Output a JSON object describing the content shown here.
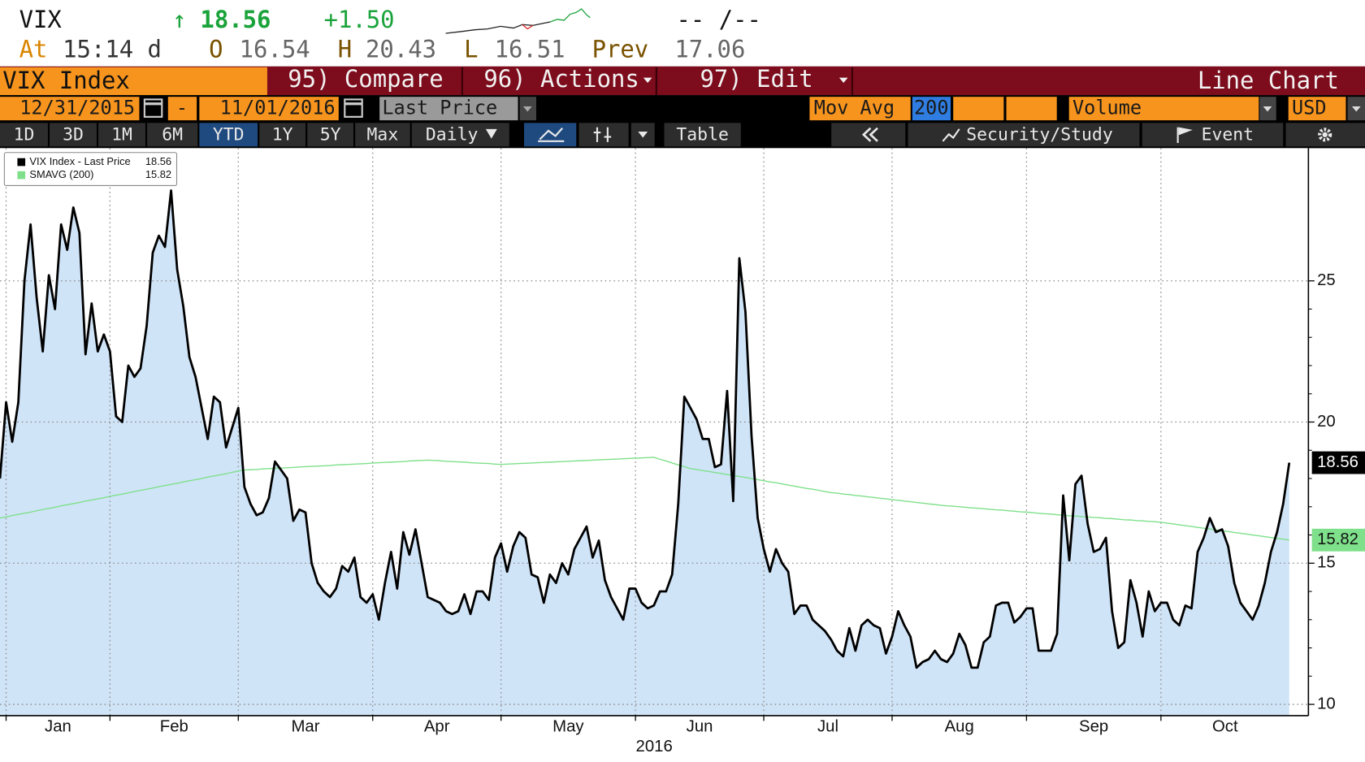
{
  "quote": {
    "ticker": "VIX",
    "arrow": "↑",
    "last": 18.56,
    "change": "+1.50",
    "bid_ask": "-- /--",
    "time_label": "At",
    "time": "15:14 d",
    "open_label": "O",
    "open": 16.54,
    "high_label": "H",
    "high": 20.43,
    "low_label": "L",
    "low": 16.51,
    "prev_label": "Prev",
    "prev": 17.06
  },
  "menu": {
    "security": "VIX Index",
    "items": [
      "95) Compare",
      "96) Actions",
      "97) Edit"
    ],
    "view": "Line Chart"
  },
  "controls": {
    "start_date": "12/31/2015",
    "dash": "-",
    "end_date": "11/01/2016",
    "field": "Last Price",
    "mov_avg_label": "Mov Avg",
    "mov_avg_period": 200,
    "volume": "Volume",
    "currency": "USD"
  },
  "toolbar": {
    "periods": [
      "1D",
      "3D",
      "1M",
      "6M",
      "YTD",
      "1Y",
      "5Y",
      "Max"
    ],
    "selected_period": "YTD",
    "frequency": "Daily",
    "table": "Table",
    "security_study": "Security/Study",
    "event": "Event"
  },
  "chart_data": {
    "type": "line",
    "x_axis_label": "2016",
    "ylim": [
      9.6,
      29.7
    ],
    "yticks": [
      10,
      15,
      20,
      25
    ],
    "grid": true,
    "y_axis_side": "right",
    "legend": "upper left",
    "categories": [
      null,
      "Jan",
      null,
      null,
      null,
      null,
      null,
      null,
      null,
      null,
      null,
      null,
      null,
      null,
      null,
      null,
      null,
      null,
      "Feb",
      null,
      null,
      null,
      null,
      null,
      null,
      null,
      null,
      null,
      null,
      null,
      null,
      null,
      null,
      null,
      null,
      null,
      null,
      null,
      null,
      "Mar",
      null,
      null,
      null,
      null,
      null,
      null,
      null,
      null,
      null,
      null,
      null,
      null,
      null,
      null,
      null,
      null,
      null,
      null,
      null,
      null,
      null,
      "Apr",
      null,
      null,
      null,
      null,
      null,
      null,
      null,
      null,
      null,
      null,
      null,
      null,
      null,
      null,
      null,
      null,
      null,
      null,
      null,
      null,
      "May",
      null,
      null,
      null,
      null,
      null,
      null,
      null,
      null,
      null,
      null,
      null,
      null,
      null,
      null,
      null,
      null,
      null,
      null,
      null,
      null,
      null,
      "Jun",
      null,
      null,
      null,
      null,
      null,
      null,
      null,
      null,
      null,
      null,
      null,
      null,
      null,
      null,
      null,
      null,
      null,
      null,
      null,
      null,
      "Jul",
      null,
      null,
      null,
      null,
      null,
      null,
      null,
      null,
      null,
      null,
      null,
      null,
      null,
      null,
      null,
      null,
      null,
      null,
      null,
      null,
      "Aug",
      null,
      null,
      null,
      null,
      null,
      null,
      null,
      null,
      null,
      null,
      null,
      null,
      null,
      null,
      null,
      null,
      null,
      null,
      null,
      null,
      null,
      "Sep",
      null,
      null,
      null,
      null,
      null,
      null,
      null,
      null,
      null,
      null,
      null,
      null,
      null,
      null,
      null,
      null,
      null,
      null,
      null,
      null,
      null,
      "Oct",
      null,
      null,
      null,
      null,
      null,
      null,
      null,
      null,
      null,
      null,
      null,
      null,
      null,
      null,
      null,
      null,
      null,
      null,
      null,
      null,
      null
    ],
    "series": [
      {
        "name": "VIX Index - Last Price",
        "color": "#000000",
        "fill": "#d0e4f8",
        "values": [
          18.0,
          20.7,
          19.3,
          20.7,
          25.0,
          27.0,
          24.4,
          22.5,
          25.2,
          24.0,
          27.0,
          26.1,
          27.6,
          26.7,
          22.4,
          24.2,
          22.5,
          23.1,
          22.5,
          20.2,
          20.0,
          22.0,
          21.6,
          21.9,
          23.4,
          26.0,
          26.6,
          26.2,
          28.2,
          25.4,
          24.1,
          22.3,
          21.6,
          20.5,
          19.4,
          20.9,
          20.7,
          19.1,
          19.8,
          20.5,
          17.7,
          17.1,
          16.7,
          16.8,
          17.3,
          18.6,
          18.3,
          18.0,
          16.5,
          16.9,
          16.8,
          15.0,
          14.3,
          14.0,
          13.8,
          14.1,
          14.9,
          14.7,
          15.2,
          13.8,
          13.6,
          13.9,
          13.0,
          14.3,
          15.4,
          14.1,
          16.1,
          15.3,
          16.2,
          15.0,
          13.8,
          13.7,
          13.6,
          13.3,
          13.2,
          13.3,
          13.9,
          13.2,
          14.0,
          14.0,
          13.7,
          15.2,
          15.7,
          14.7,
          15.6,
          16.1,
          15.9,
          14.6,
          14.5,
          13.6,
          14.6,
          14.3,
          15.0,
          14.6,
          15.5,
          15.9,
          16.3,
          15.2,
          15.8,
          14.4,
          13.8,
          13.4,
          13.0,
          14.1,
          14.1,
          13.6,
          13.4,
          13.5,
          14.0,
          14.0,
          14.6,
          17.1,
          20.9,
          20.5,
          20.1,
          19.4,
          19.4,
          18.4,
          18.5,
          21.1,
          17.2,
          25.8,
          23.9,
          19.5,
          16.6,
          15.5,
          14.7,
          15.5,
          15.0,
          14.7,
          13.2,
          13.5,
          13.5,
          13.0,
          12.8,
          12.6,
          12.3,
          11.9,
          11.7,
          12.7,
          11.9,
          12.8,
          13.0,
          12.8,
          12.7,
          11.8,
          12.4,
          13.3,
          12.8,
          12.4,
          11.3,
          11.5,
          11.6,
          11.9,
          11.6,
          11.5,
          11.8,
          12.5,
          12.1,
          11.3,
          11.3,
          12.2,
          12.4,
          13.5,
          13.6,
          13.6,
          12.9,
          13.1,
          13.4,
          13.4,
          11.9,
          11.9,
          11.9,
          12.5,
          17.4,
          15.1,
          17.8,
          18.1,
          16.4,
          15.4,
          15.5,
          15.9,
          13.3,
          12.0,
          12.2,
          14.4,
          13.6,
          12.4,
          14.0,
          13.3,
          13.6,
          13.6,
          13.0,
          12.8,
          13.5,
          13.4,
          15.4,
          15.9,
          16.6,
          16.1,
          16.2,
          15.6,
          14.3,
          13.6,
          13.3,
          13.0,
          13.5,
          14.3,
          15.4,
          16.1,
          17.1,
          18.56
        ]
      },
      {
        "name": "SMAVG (200)",
        "color": "#7ee08a",
        "values": [
          16.6,
          16.64,
          16.69,
          16.73,
          16.77,
          16.81,
          16.86,
          16.9,
          16.94,
          16.98,
          17.03,
          17.07,
          17.11,
          17.15,
          17.2,
          17.24,
          17.28,
          17.32,
          17.37,
          17.41,
          17.45,
          17.49,
          17.54,
          17.58,
          17.62,
          17.66,
          17.71,
          17.75,
          17.79,
          17.83,
          17.88,
          17.92,
          17.96,
          18.0,
          18.05,
          18.09,
          18.13,
          18.17,
          18.22,
          18.26,
          18.3,
          18.31,
          18.32,
          18.34,
          18.35,
          18.36,
          18.37,
          18.38,
          18.39,
          18.41,
          18.42,
          18.43,
          18.44,
          18.45,
          18.46,
          18.48,
          18.49,
          18.5,
          18.51,
          18.52,
          18.53,
          18.55,
          18.56,
          18.57,
          18.58,
          18.59,
          18.6,
          18.62,
          18.63,
          18.64,
          18.65,
          18.64,
          18.63,
          18.61,
          18.6,
          18.59,
          18.58,
          18.56,
          18.55,
          18.54,
          18.53,
          18.51,
          18.5,
          18.51,
          18.52,
          18.53,
          18.54,
          18.55,
          18.56,
          18.57,
          18.58,
          18.59,
          18.6,
          18.61,
          18.62,
          18.63,
          18.64,
          18.65,
          18.66,
          18.67,
          18.68,
          18.69,
          18.7,
          18.71,
          18.72,
          18.73,
          18.74,
          18.75,
          18.68,
          18.62,
          18.55,
          18.48,
          18.42,
          18.35,
          18.32,
          18.28,
          18.25,
          18.21,
          18.18,
          18.14,
          18.11,
          18.07,
          18.04,
          18.0,
          17.96,
          17.92,
          17.88,
          17.85,
          17.81,
          17.77,
          17.73,
          17.69,
          17.65,
          17.62,
          17.58,
          17.54,
          17.5,
          17.48,
          17.45,
          17.43,
          17.4,
          17.38,
          17.35,
          17.33,
          17.3,
          17.28,
          17.25,
          17.23,
          17.2,
          17.18,
          17.15,
          17.13,
          17.1,
          17.08,
          17.05,
          17.03,
          17.02,
          17.0,
          16.98,
          16.96,
          16.95,
          16.93,
          16.91,
          16.89,
          16.88,
          16.86,
          16.84,
          16.82,
          16.81,
          16.79,
          16.77,
          16.75,
          16.74,
          16.72,
          16.7,
          16.68,
          16.67,
          16.65,
          16.64,
          16.62,
          16.61,
          16.59,
          16.58,
          16.56,
          16.54,
          16.53,
          16.51,
          16.5,
          16.48,
          16.47,
          16.45,
          16.42,
          16.39,
          16.36,
          16.33,
          16.3,
          16.27,
          16.24,
          16.21,
          16.18,
          16.15,
          16.12,
          16.09,
          16.06,
          16.03,
          16.0,
          15.97,
          15.94,
          15.91,
          15.88,
          15.85,
          15.82
        ]
      }
    ]
  }
}
